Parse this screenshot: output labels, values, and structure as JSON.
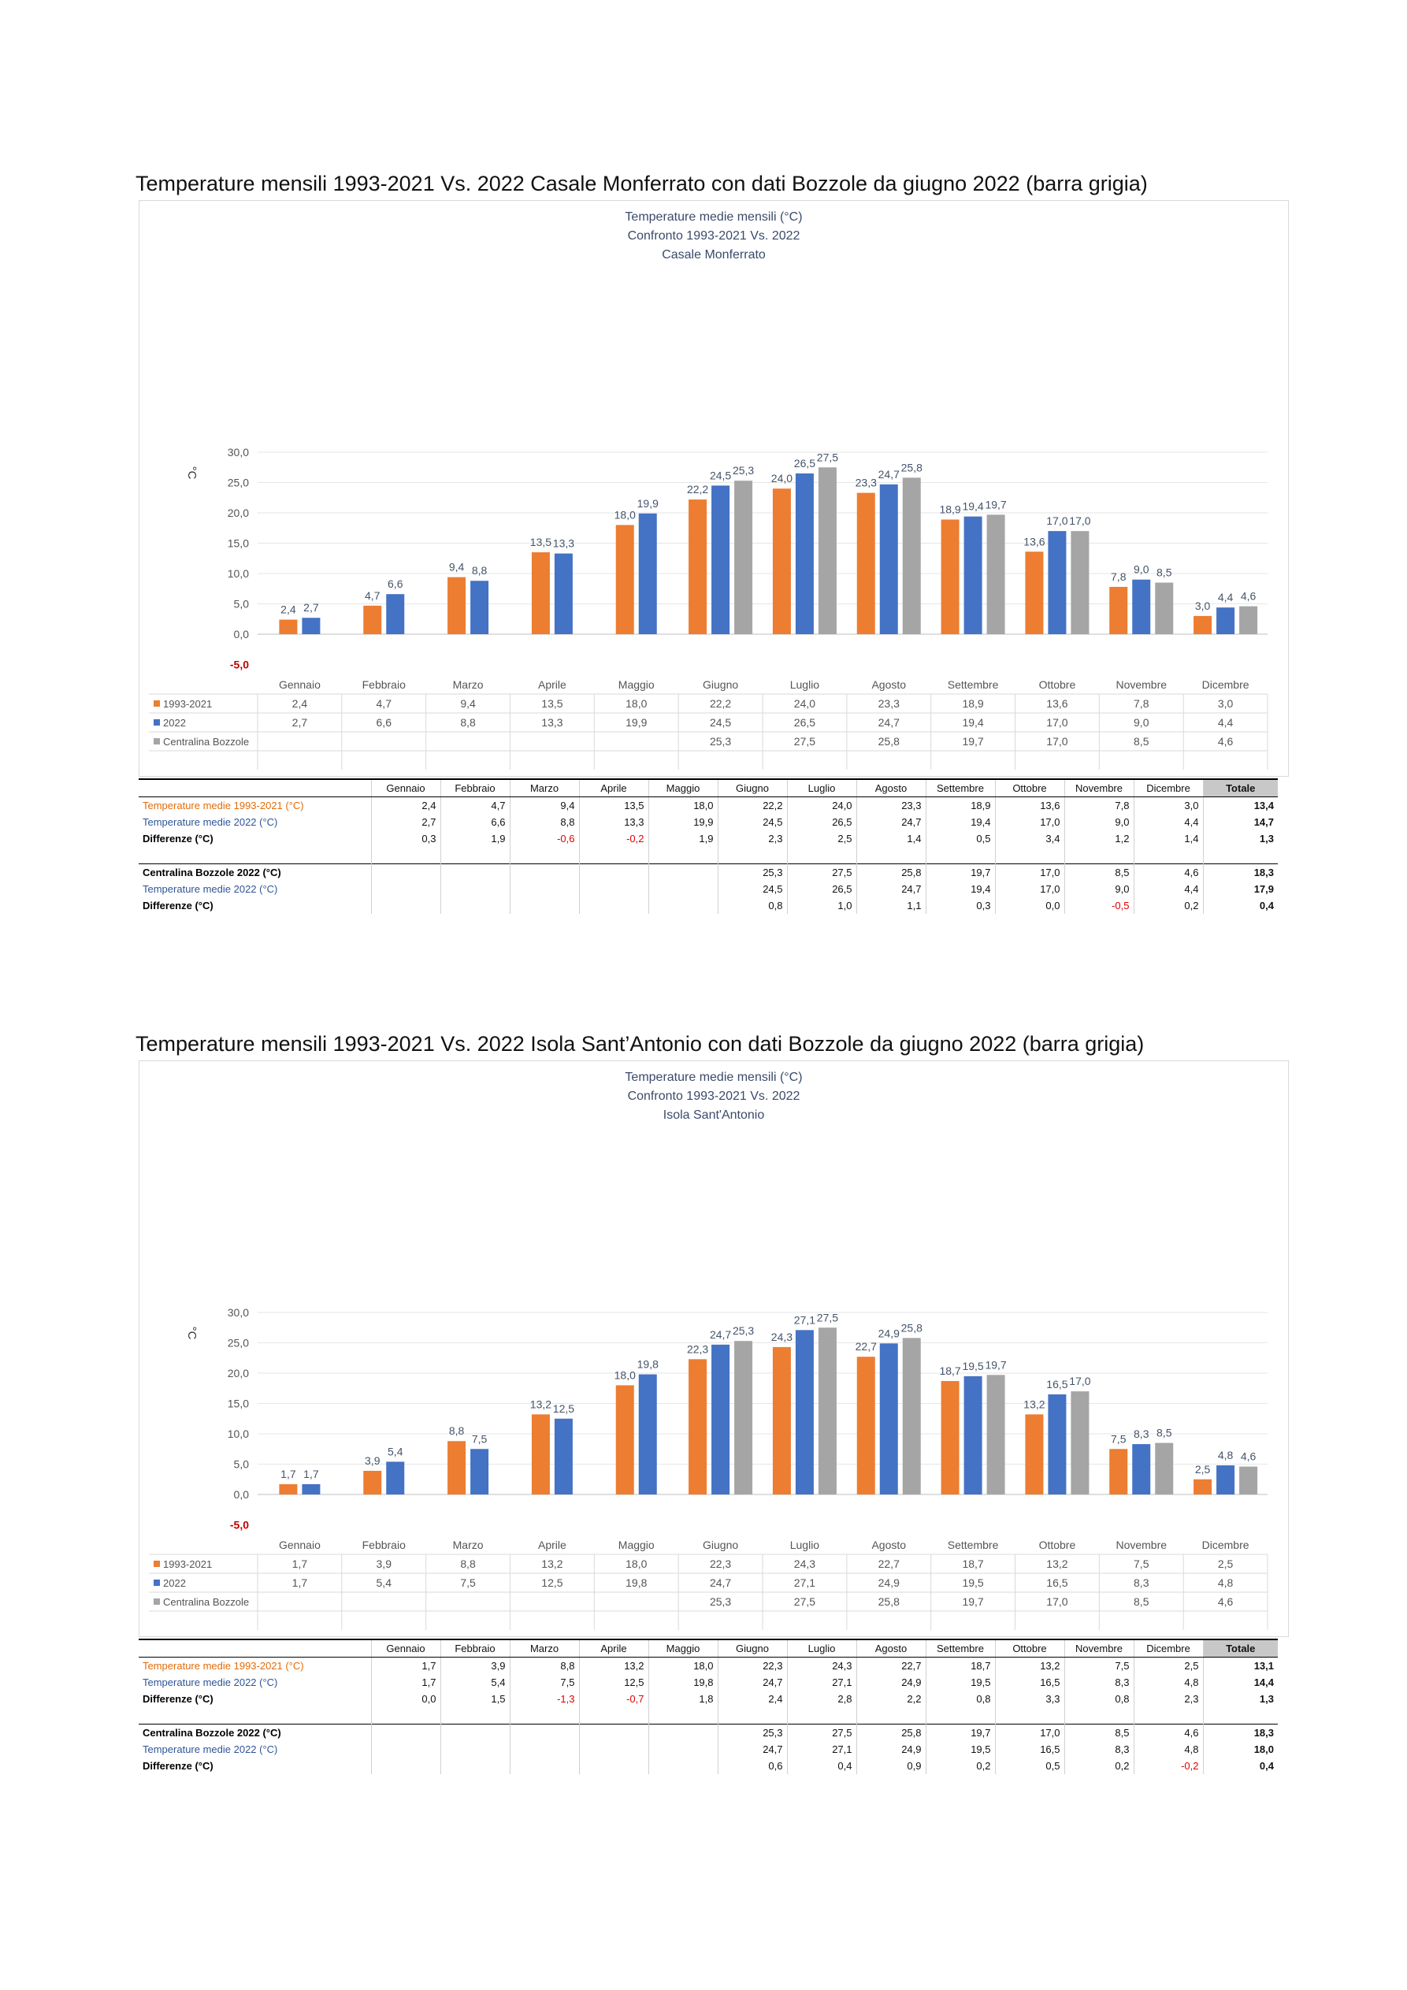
{
  "colors": {
    "orange": "#ED7D31",
    "blue": "#4472C4",
    "gray": "#A5A5A5",
    "orange_text": "#E36C09",
    "blue_text": "#2F5597",
    "negative": "#E00000"
  },
  "months": [
    "Gennaio",
    "Febbraio",
    "Marzo",
    "Aprile",
    "Maggio",
    "Giugno",
    "Luglio",
    "Agosto",
    "Settembre",
    "Ottobre",
    "Novembre",
    "Dicembre"
  ],
  "sections": [
    {
      "heading": "Temperature mensili 1993-2021 Vs. 2022 Casale Monferrato con dati Bozzole da giugno 2022 (barra grigia)",
      "table": {
        "header_total": "Totale",
        "rows": [
          {
            "label": "Temperature medie  1993-2021  (°C)",
            "style": "orange",
            "values": [
              "2,4",
              "4,7",
              "9,4",
              "13,5",
              "18,0",
              "22,2",
              "24,0",
              "23,3",
              "18,9",
              "13,6",
              "7,8",
              "3,0"
            ],
            "total": "13,4"
          },
          {
            "label": "Temperature medie  2022  (°C)",
            "style": "blue",
            "values": [
              "2,7",
              "6,6",
              "8,8",
              "13,3",
              "19,9",
              "24,5",
              "26,5",
              "24,7",
              "19,4",
              "17,0",
              "9,0",
              "4,4"
            ],
            "total": "14,7"
          },
          {
            "label": "Differenze   (°C)",
            "style": "bold",
            "values": [
              "0,3",
              "1,9",
              "-0,6",
              "-0,2",
              "1,9",
              "2,3",
              "2,5",
              "1,4",
              "0,5",
              "3,4",
              "1,2",
              "1,4"
            ],
            "total": "1,3"
          },
          {
            "label": "Centralina Bozzole 2022 (°C)",
            "style": "bold",
            "values": [
              "",
              "",
              "",
              "",
              "",
              "25,3",
              "27,5",
              "25,8",
              "19,7",
              "17,0",
              "8,5",
              "4,6"
            ],
            "total": "18,3"
          },
          {
            "label": "Temperature medie  2022  (°C)",
            "style": "blue",
            "values": [
              "",
              "",
              "",
              "",
              "",
              "24,5",
              "26,5",
              "24,7",
              "19,4",
              "17,0",
              "9,0",
              "4,4"
            ],
            "total": "17,9"
          },
          {
            "label": "Differenze   (°C)",
            "style": "bold",
            "values": [
              "",
              "",
              "",
              "",
              "",
              "0,8",
              "1,0",
              "1,1",
              "0,3",
              "0,0",
              "-0,5",
              "0,2"
            ],
            "total": "0,4"
          }
        ]
      }
    },
    {
      "heading": "Temperature mensili 1993-2021 Vs. 2022 Isola Sant’Antonio con dati Bozzole da giugno 2022 (barra grigia)",
      "table": {
        "header_total": "Totale",
        "rows": [
          {
            "label": "Temperature medie  1993-2021  (°C)",
            "style": "orange",
            "values": [
              "1,7",
              "3,9",
              "8,8",
              "13,2",
              "18,0",
              "22,3",
              "24,3",
              "22,7",
              "18,7",
              "13,2",
              "7,5",
              "2,5"
            ],
            "total": "13,1"
          },
          {
            "label": "Temperature medie  2022  (°C)",
            "style": "blue",
            "values": [
              "1,7",
              "5,4",
              "7,5",
              "12,5",
              "19,8",
              "24,7",
              "27,1",
              "24,9",
              "19,5",
              "16,5",
              "8,3",
              "4,8"
            ],
            "total": "14,4"
          },
          {
            "label": "Differenze   (°C)",
            "style": "bold",
            "values": [
              "0,0",
              "1,5",
              "-1,3",
              "-0,7",
              "1,8",
              "2,4",
              "2,8",
              "2,2",
              "0,8",
              "3,3",
              "0,8",
              "2,3"
            ],
            "total": "1,3"
          },
          {
            "label": "Centralina Bozzole 2022 (°C)",
            "style": "bold",
            "values": [
              "",
              "",
              "",
              "",
              "",
              "25,3",
              "27,5",
              "25,8",
              "19,7",
              "17,0",
              "8,5",
              "4,6"
            ],
            "total": "18,3"
          },
          {
            "label": "Temperature medie  2022  (°C)",
            "style": "blue",
            "values": [
              "",
              "",
              "",
              "",
              "",
              "24,7",
              "27,1",
              "24,9",
              "19,5",
              "16,5",
              "8,3",
              "4,8"
            ],
            "total": "18,0"
          },
          {
            "label": "Differenze   (°C)",
            "style": "bold",
            "values": [
              "",
              "",
              "",
              "",
              "",
              "0,6",
              "0,4",
              "0,9",
              "0,2",
              "0,5",
              "0,2",
              "-0,2"
            ],
            "total": "0,4"
          }
        ]
      }
    }
  ],
  "chart_data": [
    {
      "type": "bar",
      "title": [
        "Temperature medie mensili (°C)",
        "Confronto 1993-2021 Vs. 2022",
        "Casale Monferrato"
      ],
      "ylabel": "°C",
      "ylim": [
        -5,
        30
      ],
      "yticks": [
        "-5,0",
        "0,0",
        "5,0",
        "10,0",
        "15,0",
        "20,0",
        "25,0",
        "30,0"
      ],
      "grid": true,
      "legend": "data-table",
      "categories": [
        "Gennaio",
        "Febbraio",
        "Marzo",
        "Aprile",
        "Maggio",
        "Giugno",
        "Luglio",
        "Agosto",
        "Settembre",
        "Ottobre",
        "Novembre",
        "Dicembre"
      ],
      "series": [
        {
          "name": "1993-2021",
          "color": "#ED7D31",
          "values": [
            2.4,
            4.7,
            9.4,
            13.5,
            18.0,
            22.2,
            24.0,
            23.3,
            18.9,
            13.6,
            7.8,
            3.0
          ],
          "labels": [
            "2,4",
            "4,7",
            "9,4",
            "13,5",
            "18,0",
            "22,2",
            "24,0",
            "23,3",
            "18,9",
            "13,6",
            "7,8",
            "3,0"
          ]
        },
        {
          "name": "2022",
          "color": "#4472C4",
          "values": [
            2.7,
            6.6,
            8.8,
            13.3,
            19.9,
            24.5,
            26.5,
            24.7,
            19.4,
            17.0,
            9.0,
            4.4
          ],
          "labels": [
            "2,7",
            "6,6",
            "8,8",
            "13,3",
            "19,9",
            "24,5",
            "26,5",
            "24,7",
            "19,4",
            "17,0",
            "9,0",
            "4,4"
          ]
        },
        {
          "name": "Centralina Bozzole",
          "color": "#A5A5A5",
          "values": [
            null,
            null,
            null,
            null,
            null,
            25.3,
            27.5,
            25.8,
            19.7,
            17.0,
            8.5,
            4.6
          ],
          "labels": [
            "",
            "",
            "",
            "",
            "",
            "25,3",
            "27,5",
            "25,8",
            "19,7",
            "17,0",
            "8,5",
            "4,6"
          ]
        }
      ]
    },
    {
      "type": "bar",
      "title": [
        "Temperature medie mensili (°C)",
        "Confronto 1993-2021 Vs. 2022",
        "Isola Sant'Antonio"
      ],
      "ylabel": "°C",
      "ylim": [
        -5,
        30
      ],
      "yticks": [
        "-5,0",
        "0,0",
        "5,0",
        "10,0",
        "15,0",
        "20,0",
        "25,0",
        "30,0"
      ],
      "grid": true,
      "legend": "data-table",
      "categories": [
        "Gennaio",
        "Febbraio",
        "Marzo",
        "Aprile",
        "Maggio",
        "Giugno",
        "Luglio",
        "Agosto",
        "Settembre",
        "Ottobre",
        "Novembre",
        "Dicembre"
      ],
      "series": [
        {
          "name": "1993-2021",
          "color": "#ED7D31",
          "values": [
            1.7,
            3.9,
            8.8,
            13.2,
            18.0,
            22.3,
            24.3,
            22.7,
            18.7,
            13.2,
            7.5,
            2.5
          ],
          "labels": [
            "1,7",
            "3,9",
            "8,8",
            "13,2",
            "18,0",
            "22,3",
            "24,3",
            "22,7",
            "18,7",
            "13,2",
            "7,5",
            "2,5"
          ]
        },
        {
          "name": "2022",
          "color": "#4472C4",
          "values": [
            1.7,
            5.4,
            7.5,
            12.5,
            19.8,
            24.7,
            27.1,
            24.9,
            19.5,
            16.5,
            8.3,
            4.8
          ],
          "labels": [
            "1,7",
            "5,4",
            "7,5",
            "12,5",
            "19,8",
            "24,7",
            "27,1",
            "24,9",
            "19,5",
            "16,5",
            "8,3",
            "4,8"
          ]
        },
        {
          "name": "Centralina Bozzole",
          "color": "#A5A5A5",
          "values": [
            null,
            null,
            null,
            null,
            null,
            25.3,
            27.5,
            25.8,
            19.7,
            17.0,
            8.5,
            4.6
          ],
          "labels": [
            "",
            "",
            "",
            "",
            "",
            "25,3",
            "27,5",
            "25,8",
            "19,7",
            "17,0",
            "8,5",
            "4,6"
          ]
        }
      ]
    }
  ]
}
